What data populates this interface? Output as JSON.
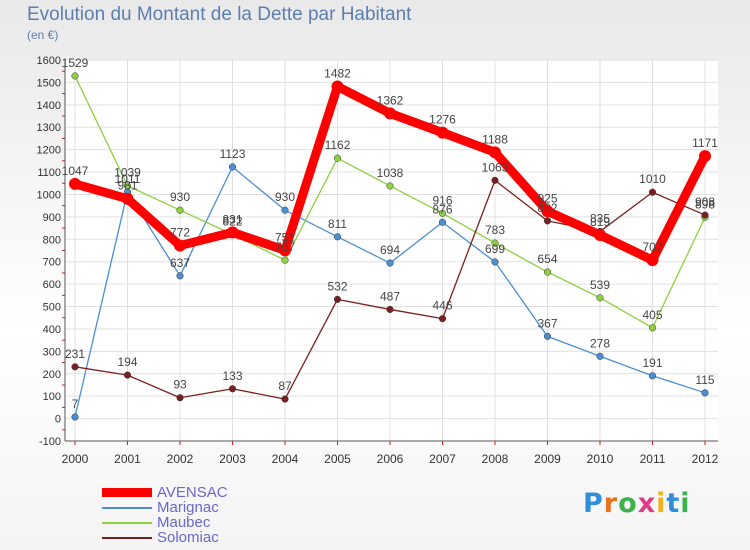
{
  "title": "Evolution du Montant de la Dette par Habitant",
  "subtitle": "(en €)",
  "logo": {
    "letters": [
      "P",
      "r",
      "o",
      "x",
      "i",
      "t",
      "i"
    ],
    "colors": [
      "#2f8fd8",
      "#e8731c",
      "#3bb24a",
      "#e23a8a",
      "#f0b21b",
      "#2f8fd8",
      "#3bb24a"
    ]
  },
  "chart_data": {
    "type": "line",
    "title": "Evolution du Montant de la Dette par Habitant",
    "ylabel": "(en €)",
    "xlabel": "",
    "ylim": [
      -100,
      1600
    ],
    "yticks": [
      -100,
      0,
      100,
      200,
      300,
      400,
      500,
      600,
      700,
      800,
      900,
      1000,
      1100,
      1200,
      1300,
      1400,
      1500,
      1600
    ],
    "x": [
      "2000",
      "2001",
      "2002",
      "2003",
      "2004",
      "2005",
      "2006",
      "2007",
      "2008",
      "2009",
      "2010",
      "2011",
      "2012"
    ],
    "grid": true,
    "legend_position": "bottom-left",
    "series": [
      {
        "name": "AVENSAC",
        "color": "#ff0000",
        "values": [
          1047,
          981,
          772,
          831,
          751,
          1482,
          1362,
          1276,
          1188,
          925,
          819,
          707,
          1171
        ],
        "labels": [
          "1047",
          "981",
          "772",
          "831",
          "751",
          "1482",
          "1362",
          "1276",
          "1188",
          "925",
          "819",
          "707",
          "1171"
        ]
      },
      {
        "name": "Marignac",
        "color": "#4a8fd0",
        "values": [
          7,
          1011,
          637,
          1123,
          930,
          811,
          694,
          876,
          699,
          367,
          278,
          191,
          115
        ],
        "labels": [
          "7",
          "1011",
          "637",
          "1123",
          "930",
          "811",
          "694",
          "876",
          "699",
          "367",
          "278",
          "191",
          "115"
        ]
      },
      {
        "name": "Maubec",
        "color": "#8ed040",
        "values": [
          1529,
          1039,
          930,
          822,
          707,
          1162,
          1038,
          916,
          783,
          654,
          539,
          405,
          898
        ],
        "labels": [
          "1529",
          "1039",
          "930",
          "822",
          "707",
          "1162",
          "1038",
          "916",
          "783",
          "654",
          "539",
          "405",
          "898"
        ]
      },
      {
        "name": "Solomiac",
        "color": "#7a1f1f",
        "values": [
          231,
          194,
          93,
          133,
          87,
          532,
          487,
          446,
          1063,
          882,
          835,
          1010,
          908
        ],
        "labels": [
          "231",
          "194",
          "93",
          "133",
          "87",
          "532",
          "487",
          "446",
          "1063",
          "882",
          "835",
          "1010",
          "908"
        ]
      }
    ]
  }
}
